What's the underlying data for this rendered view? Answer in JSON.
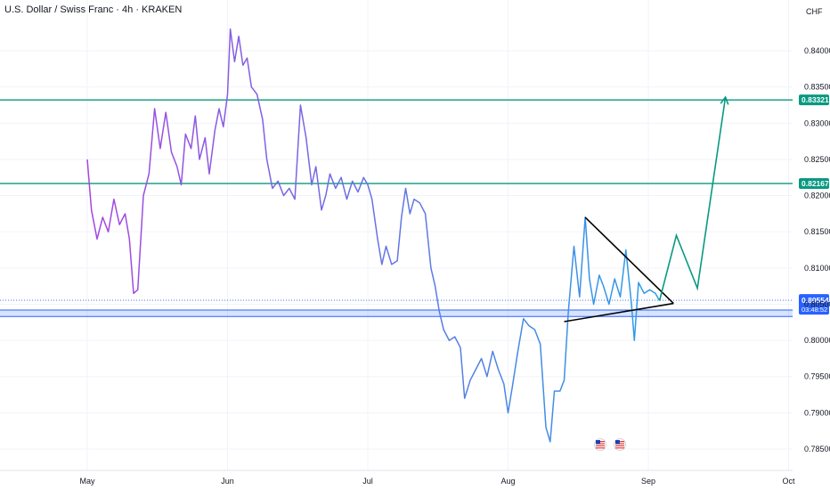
{
  "header": {
    "title": "U.S. Dollar / Swiss Franc · 4h · KRAKEN"
  },
  "colors": {
    "level_line": "#089981",
    "support_band": "#2962ff",
    "price_line_start": "#a646e0",
    "price_line_end": "#2a9ee8",
    "projection": "#089981",
    "triangle": "#000000"
  },
  "chart_data": {
    "type": "line",
    "currency_label": "CHF",
    "y_ticks": [
      "0.84000",
      "0.83500",
      "0.83000",
      "0.82500",
      "0.82000",
      "0.81500",
      "0.81000",
      "0.80500",
      "0.80000",
      "0.79500",
      "0.79000",
      "0.78500"
    ],
    "x_ticks": [
      "May",
      "Jun",
      "Jul",
      "Aug",
      "Sep",
      "Oct"
    ],
    "ylim": [
      0.7835,
      0.8435
    ],
    "horizontal_levels": [
      {
        "value": 0.83321,
        "label": "0.83321"
      },
      {
        "value": 0.82167,
        "label": "0.82167"
      }
    ],
    "support_band": {
      "upper": 0.8042,
      "lower": 0.8033
    },
    "current_price": {
      "value": 0.80554,
      "label": "0.80554",
      "countdown": "03:48:52"
    },
    "series": [
      {
        "points": [
          [
            0,
            0.825
          ],
          [
            0.03,
            0.818
          ],
          [
            0.07,
            0.814
          ],
          [
            0.11,
            0.817
          ],
          [
            0.15,
            0.815
          ],
          [
            0.19,
            0.8195
          ],
          [
            0.23,
            0.816
          ],
          [
            0.27,
            0.8175
          ],
          [
            0.3,
            0.814
          ],
          [
            0.33,
            0.8065
          ],
          [
            0.36,
            0.807
          ],
          [
            0.4,
            0.82
          ],
          [
            0.44,
            0.823
          ],
          [
            0.48,
            0.832
          ],
          [
            0.52,
            0.8265
          ],
          [
            0.56,
            0.8315
          ],
          [
            0.6,
            0.826
          ],
          [
            0.64,
            0.824
          ],
          [
            0.67,
            0.8215
          ],
          [
            0.7,
            0.8285
          ],
          [
            0.74,
            0.8265
          ],
          [
            0.77,
            0.831
          ],
          [
            0.8,
            0.825
          ],
          [
            0.84,
            0.828
          ],
          [
            0.87,
            0.823
          ],
          [
            0.91,
            0.829
          ],
          [
            0.94,
            0.832
          ],
          [
            0.97,
            0.8295
          ],
          [
            1.0,
            0.834
          ],
          [
            1.02,
            0.843
          ],
          [
            1.05,
            0.8385
          ],
          [
            1.08,
            0.842
          ],
          [
            1.11,
            0.838
          ],
          [
            1.14,
            0.839
          ],
          [
            1.17,
            0.835
          ],
          [
            1.21,
            0.834
          ],
          [
            1.25,
            0.8305
          ],
          [
            1.28,
            0.825
          ],
          [
            1.32,
            0.821
          ],
          [
            1.36,
            0.822
          ],
          [
            1.4,
            0.82
          ],
          [
            1.44,
            0.821
          ],
          [
            1.48,
            0.8195
          ],
          [
            1.52,
            0.8325
          ],
          [
            1.56,
            0.828
          ],
          [
            1.6,
            0.8215
          ],
          [
            1.63,
            0.824
          ],
          [
            1.67,
            0.818
          ],
          [
            1.7,
            0.82
          ],
          [
            1.73,
            0.823
          ],
          [
            1.77,
            0.821
          ],
          [
            1.81,
            0.8225
          ],
          [
            1.85,
            0.8195
          ],
          [
            1.89,
            0.822
          ],
          [
            1.93,
            0.8205
          ],
          [
            1.97,
            0.8225
          ],
          [
            2.0,
            0.8215
          ],
          [
            2.03,
            0.8195
          ],
          [
            2.07,
            0.814
          ],
          [
            2.1,
            0.8105
          ],
          [
            2.13,
            0.813
          ],
          [
            2.17,
            0.8105
          ],
          [
            2.21,
            0.811
          ],
          [
            2.24,
            0.817
          ],
          [
            2.27,
            0.821
          ],
          [
            2.3,
            0.8175
          ],
          [
            2.33,
            0.8195
          ],
          [
            2.37,
            0.819
          ],
          [
            2.41,
            0.8175
          ],
          [
            2.45,
            0.81
          ],
          [
            2.48,
            0.8075
          ],
          [
            2.51,
            0.804
          ],
          [
            2.54,
            0.8015
          ],
          [
            2.58,
            0.8
          ],
          [
            2.62,
            0.8005
          ],
          [
            2.66,
            0.799
          ],
          [
            2.69,
            0.792
          ],
          [
            2.73,
            0.7945
          ],
          [
            2.77,
            0.796
          ],
          [
            2.81,
            0.7975
          ],
          [
            2.85,
            0.795
          ],
          [
            2.89,
            0.7985
          ],
          [
            2.93,
            0.796
          ],
          [
            2.97,
            0.794
          ],
          [
            3.0,
            0.79
          ],
          [
            3.03,
            0.7935
          ],
          [
            3.07,
            0.7985
          ],
          [
            3.11,
            0.803
          ],
          [
            3.15,
            0.802
          ],
          [
            3.19,
            0.8015
          ],
          [
            3.23,
            0.7995
          ],
          [
            3.27,
            0.788
          ],
          [
            3.3,
            0.786
          ],
          [
            3.33,
            0.793
          ],
          [
            3.37,
            0.793
          ],
          [
            3.4,
            0.7945
          ],
          [
            3.43,
            0.804
          ],
          [
            3.47,
            0.813
          ],
          [
            3.51,
            0.806
          ],
          [
            3.55,
            0.817
          ],
          [
            3.58,
            0.8085
          ],
          [
            3.61,
            0.805
          ],
          [
            3.65,
            0.809
          ],
          [
            3.68,
            0.8075
          ],
          [
            3.72,
            0.805
          ],
          [
            3.76,
            0.8085
          ],
          [
            3.8,
            0.806
          ],
          [
            3.84,
            0.8125
          ],
          [
            3.88,
            0.805
          ],
          [
            3.9,
            0.8
          ],
          [
            3.93,
            0.808
          ],
          [
            3.97,
            0.8065
          ],
          [
            4.01,
            0.807
          ],
          [
            4.05,
            0.8065
          ],
          [
            4.08,
            0.8055
          ]
        ]
      }
    ],
    "annotations": {
      "triangle_upper": [
        [
          3.55,
          0.817
        ],
        [
          4.18,
          0.8051
        ]
      ],
      "triangle_lower": [
        [
          3.4,
          0.8026
        ],
        [
          4.18,
          0.8051
        ]
      ],
      "projection": [
        [
          4.08,
          0.8055
        ],
        [
          4.2,
          0.8145
        ],
        [
          4.35,
          0.8072
        ],
        [
          4.55,
          0.8336
        ]
      ]
    },
    "grid": true
  },
  "flags": [
    {
      "name": "us-flag-event-1"
    },
    {
      "name": "us-flag-event-2"
    }
  ]
}
